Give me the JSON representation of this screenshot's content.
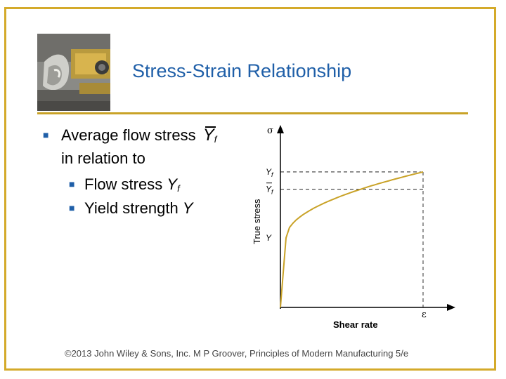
{
  "slide": {
    "title": "Stress-Strain Relationship",
    "accent_color": "#1f5fa8",
    "rule_color": "#c9a227",
    "frame_color": "#d4aa2a"
  },
  "bullets": {
    "b1_text": "Average flow stress",
    "b1_symbol": "Y",
    "b1_symbol_sub": "f",
    "b1_continuation": "in relation to",
    "b2_text": "Flow stress",
    "b2_symbol": "Y",
    "b2_symbol_sub": "f",
    "b3_text": "Yield strength",
    "b3_symbol": "Y",
    "bullet_icon": "square-bullet-icon"
  },
  "chart_data": {
    "type": "line",
    "xlabel": "Shear rate",
    "ylabel": "True stress",
    "x_axis_symbol": "ε",
    "y_axis_symbol": "σ",
    "y_markers": [
      {
        "label": "Y",
        "sub": "f",
        "bar": false,
        "level": 0.975
      },
      {
        "label": "Y",
        "sub": "f",
        "bar": true,
        "level": 0.85
      },
      {
        "label": "Y",
        "sub": "",
        "bar": false,
        "level": 0.5
      }
    ],
    "curve_color": "#c9a227"
  },
  "footer": {
    "copyright": "©2013 John Wiley & Sons, Inc.  M P Groover, Principles of Modern Manufacturing 5/e"
  }
}
